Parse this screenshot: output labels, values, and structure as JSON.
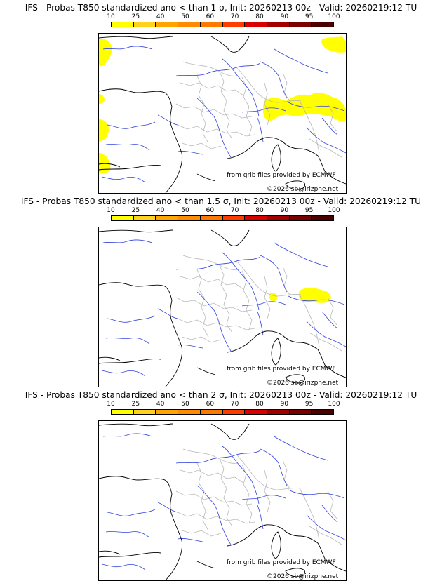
{
  "scale": {
    "labels": [
      "10",
      "25",
      "40",
      "50",
      "60",
      "70",
      "80",
      "90",
      "95",
      "100"
    ],
    "colors": [
      "#ffff00",
      "#ffd21e",
      "#ffa500",
      "#ff8c00",
      "#ff7800",
      "#ff3c00",
      "#d90000",
      "#a00000",
      "#780000",
      "#4b0000"
    ]
  },
  "credit": {
    "source": "from grib files provided by ECMWF",
    "copyright": "©2026 sb@irizpne.net"
  },
  "colors": {
    "coastline": "#000000",
    "rivers": "#3344dd",
    "borders": "#b8b8b8",
    "probability_low": "#ffff00"
  },
  "panels": [
    {
      "title": "IFS - Probas T850  standardized ano < than 1 σ, Init: 20260213 00z - Valid: 20260219:12 TU"
    },
    {
      "title": "IFS - Probas T850  standardized ano < than 1.5 σ, Init: 20260213 00z - Valid: 20260219:12 TU"
    },
    {
      "title": "IFS - Probas T850  standardized ano < than 2 σ, Init: 20260213 00z - Valid: 20260219:12 TU"
    }
  ]
}
